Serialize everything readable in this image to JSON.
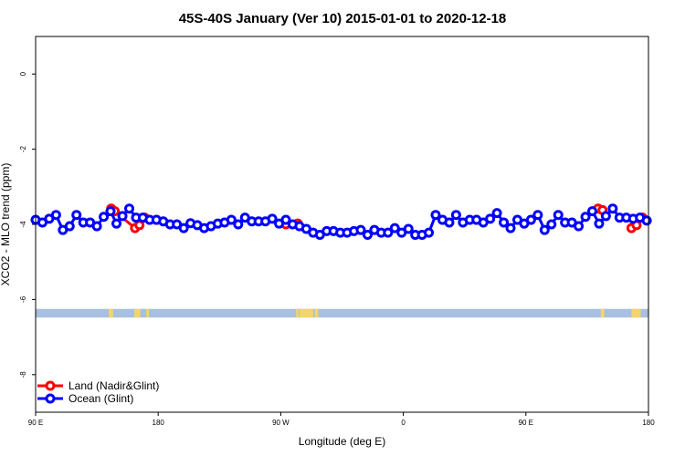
{
  "chart_data": {
    "type": "line",
    "title": "45S-40S January (Ver 10)   2015-01-01 to 2020-12-18",
    "xlabel": "Longitude (deg E)",
    "ylabel": "XCO2 - MLO trend (ppm)",
    "xlim": [
      90,
      450
    ],
    "ylim": [
      -9.0,
      1.0
    ],
    "x_ticks": [
      {
        "value": 90,
        "label": "90 E"
      },
      {
        "value": 162,
        "label": "180"
      },
      {
        "value": 234,
        "label": "90 W"
      },
      {
        "value": 306,
        "label": "0"
      },
      {
        "value": 378,
        "label": "90 E"
      },
      {
        "value": 450,
        "label": "180"
      }
    ],
    "y_ticks": [
      {
        "value": 0,
        "label": "0"
      },
      {
        "value": -2,
        "label": "-2"
      },
      {
        "value": -4,
        "label": "-4"
      },
      {
        "value": -6,
        "label": "-6"
      },
      {
        "value": -8,
        "label": "-8"
      }
    ],
    "grid": false,
    "legend_position": "bottom-left",
    "series": [
      {
        "name": "Land (Nadir&Glint)",
        "color": "#ff0000",
        "segments": [
          [
            [
              134.4,
              -3.58
            ],
            [
              136.5,
              -3.65
            ],
            [
              148.4,
              -4.1
            ],
            [
              151.0,
              -4.02
            ],
            [
              154.0,
              -3.82
            ]
          ],
          [
            [
              237.0,
              -4.0
            ],
            [
              244.0,
              -3.98
            ]
          ],
          [
            [
              420.4,
              -3.58
            ],
            [
              423.0,
              -3.62
            ]
          ],
          [
            [
              440.0,
              -4.1
            ],
            [
              443.0,
              -4.02
            ],
            [
              446.5,
              -3.82
            ]
          ]
        ]
      },
      {
        "name": "Ocean (Glint)",
        "color": "#0000ff",
        "x": [
          90.0,
          94.0,
          98.0,
          102.0,
          106.0,
          110.0,
          114.0,
          118.0,
          122.0,
          126.0,
          130.0,
          134.0,
          137.5,
          141.0,
          145.0,
          149.0,
          153.0,
          157.0,
          161.0,
          165.0,
          169.0,
          173.0,
          177.0,
          181.0,
          185.0,
          189.0,
          193.0,
          197.0,
          201.0,
          205.0,
          209.0,
          213.0,
          217.0,
          221.0,
          225.0,
          229.0,
          233.0,
          237.0,
          241.0,
          245.0,
          249.0,
          253.0,
          257.0,
          261.0,
          265.0,
          269.0,
          273.0,
          277.0,
          281.0,
          285.0,
          289.0,
          293.0,
          297.0,
          301.0,
          305.0,
          309.0,
          313.0,
          317.0,
          321.0,
          325.0,
          329.0,
          333.0,
          337.0,
          341.0,
          345.0,
          349.0,
          353.0,
          357.0,
          361.0,
          365.0,
          369.0,
          373.0,
          377.0,
          381.0,
          385.0,
          389.0,
          393.0,
          397.0,
          401.0,
          405.0,
          409.0,
          413.0,
          417.0,
          421.0,
          425.0,
          429.0,
          433.0,
          437.0,
          441.0,
          445.0,
          449.0
        ],
        "y": [
          -3.88,
          -3.95,
          -3.85,
          -3.75,
          -4.15,
          -4.05,
          -3.75,
          -3.95,
          -3.95,
          -4.05,
          -3.8,
          -3.65,
          -3.98,
          -3.78,
          -3.58,
          -3.82,
          -3.82,
          -3.88,
          -3.88,
          -3.92,
          -4.0,
          -4.0,
          -4.1,
          -3.97,
          -4.02,
          -4.1,
          -4.05,
          -3.98,
          -3.95,
          -3.88,
          -4.0,
          -3.82,
          -3.92,
          -3.92,
          -3.92,
          -3.85,
          -3.98,
          -3.88,
          -4.0,
          -4.05,
          -4.12,
          -4.22,
          -4.28,
          -4.18,
          -4.18,
          -4.22,
          -4.22,
          -4.18,
          -4.15,
          -4.28,
          -4.15,
          -4.22,
          -4.22,
          -4.1,
          -4.22,
          -4.12,
          -4.28,
          -4.28,
          -4.22,
          -3.75,
          -3.88,
          -3.95,
          -3.75,
          -3.95,
          -3.88,
          -3.88,
          -3.95,
          -3.85,
          -3.7,
          -3.95,
          -4.1,
          -3.88,
          -3.98,
          -3.88,
          -3.75,
          -4.15,
          -4.0,
          -3.75,
          -3.95,
          -3.95,
          -4.05,
          -3.8,
          -3.65,
          -3.98,
          -3.78,
          -3.58,
          -3.82,
          -3.82,
          -3.85,
          -3.82,
          -3.9
        ]
      }
    ]
  },
  "land_ocean_band": {
    "y_range": [
      -6.48,
      -6.25
    ],
    "ocean_color": "#a7bfe0",
    "land_color": "#f5d46e",
    "land_spans": [
      [
        133,
        135.5
      ],
      [
        148,
        151.5
      ],
      [
        155,
        156.5
      ],
      [
        243,
        244.5
      ],
      [
        245,
        253
      ],
      [
        254,
        256
      ],
      [
        422,
        424
      ],
      [
        440,
        445.5
      ]
    ]
  }
}
